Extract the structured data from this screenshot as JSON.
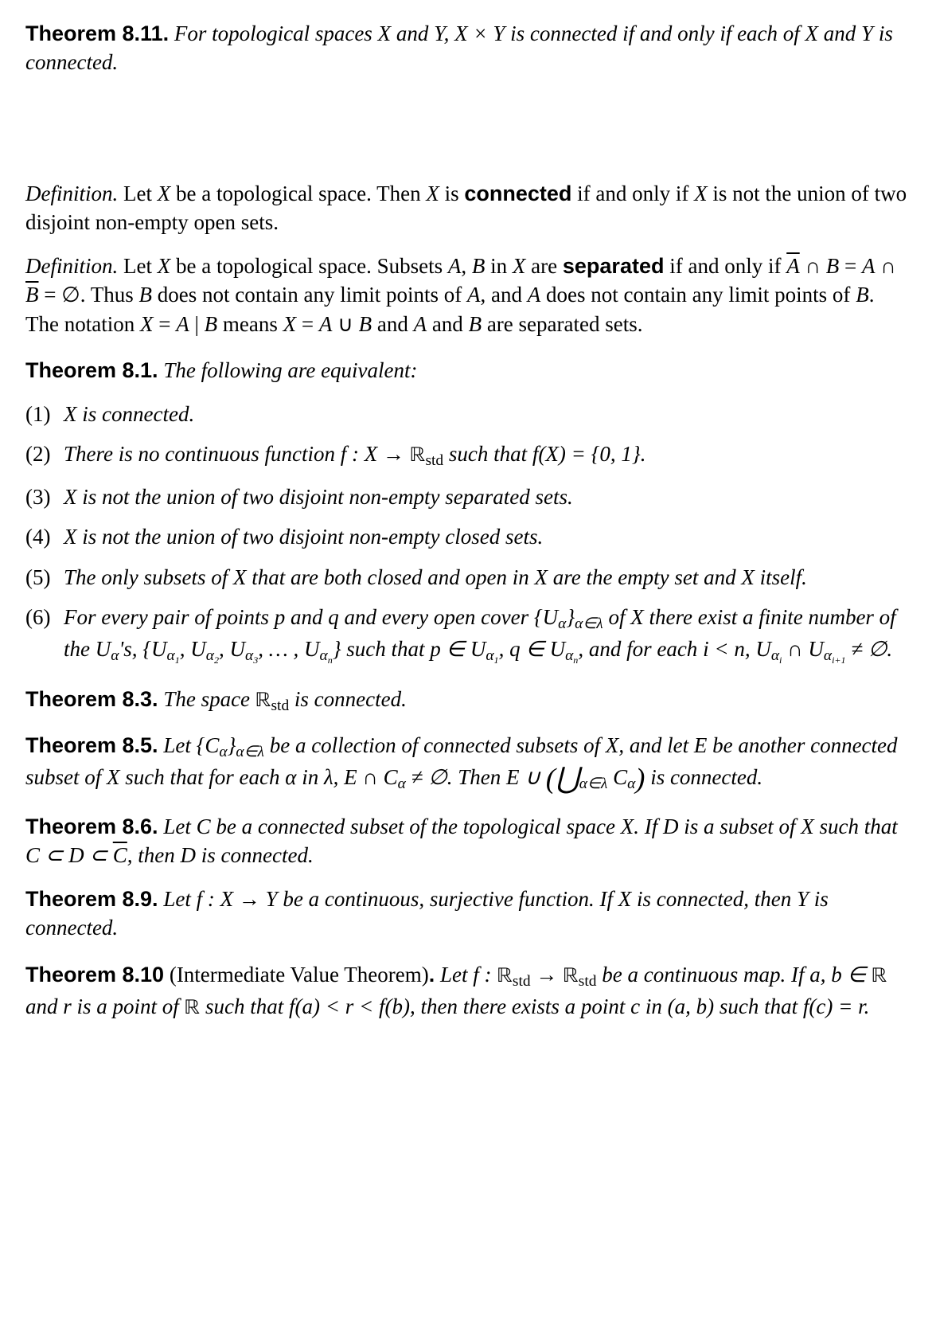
{
  "colors": {
    "text": "#000000",
    "background": "#ffffff"
  },
  "typography": {
    "body_family": "Georgia serif",
    "sans_family": "Helvetica/Arial sans",
    "body_size_pt": 20,
    "line_height": 1.35
  },
  "thm811": {
    "label": "Theorem 8.11.",
    "body_html": "For topological spaces <span class='mathvar'>X</span> and <span class='mathvar'>Y</span>, <span class='mathvar'>X</span> × <span class='mathvar'>Y</span> is connected if and only if each of <span class='mathvar'>X</span> and <span class='mathvar'>Y</span> is connected."
  },
  "def1": {
    "label": "Definition.",
    "body_html": "Let <span class='mathvar'>X</span> be a topological space. Then <span class='mathvar'>X</span> is <span class='thm-label'>connected</span> if and only if <span class='mathvar'>X</span> is not the union of two disjoint non-empty open sets."
  },
  "def2": {
    "label": "Definition.",
    "body_html": "Let <span class='mathvar'>X</span> be a topological space. Subsets <span class='mathvar'>A</span>, <span class='mathvar'>B</span> in <span class='mathvar'>X</span> are <span class='thm-label'>separated</span> if and only if <span class='ov mathvar'>A</span> ∩ <span class='mathvar'>B</span> = <span class='mathvar'>A</span> ∩ <span class='ov mathvar'>B</span> = ∅. Thus <span class='mathvar'>B</span> does not contain any limit points of <span class='mathvar'>A</span>, and <span class='mathvar'>A</span> does not contain any limit points of <span class='mathvar'>B</span>. The notation <span class='mathvar'>X</span> = <span class='mathvar'>A</span> | <span class='mathvar'>B</span> means <span class='mathvar'>X</span> = <span class='mathvar'>A</span> ∪ <span class='mathvar'>B</span> and <span class='mathvar'>A</span> and <span class='mathvar'>B</span> are separated sets."
  },
  "thm81": {
    "label": "Theorem 8.1.",
    "lead": "The following are equivalent:",
    "items": [
      {
        "num": "(1)",
        "html": "<span class='mathvar'>X</span> is connected."
      },
      {
        "num": "(2)",
        "html": "There is no continuous function <span class='mathvar'>f</span> : <span class='mathvar'>X</span> → <span class='bb'>ℝ</span><span class='sub'>std</span> such that <span class='mathvar'>f</span>(<span class='mathvar'>X</span>) = {0, 1}."
      },
      {
        "num": "(3)",
        "html": "<span class='mathvar'>X</span> is not the union of two disjoint non-empty separated sets."
      },
      {
        "num": "(4)",
        "html": "<span class='mathvar'>X</span> is not the union of two disjoint non-empty closed sets."
      },
      {
        "num": "(5)",
        "html": "The only subsets of <span class='mathvar'>X</span> that are both closed and open in <span class='mathvar'>X</span> are the empty set and <span class='mathvar'>X</span> itself."
      },
      {
        "num": "(6)",
        "html": "For every pair of points <span class='mathvar'>p</span> and <span class='mathvar'>q</span> and every open cover {<span class='mathvar'>U</span><span class='subi'>α</span>}<span class='subi'>α∈λ</span> of <span class='mathvar'>X</span> there exist a finite number of the <span class='mathvar'>U</span><span class='subi'>α</span>'s, {<span class='mathvar'>U</span><span class='subi'>α<span class='ssub'>1</span></span>, <span class='mathvar'>U</span><span class='subi'>α<span class='ssub'>2</span></span>, <span class='mathvar'>U</span><span class='subi'>α<span class='ssub'>3</span></span>, … , <span class='mathvar'>U</span><span class='subi'>α<span class='ssub'>n</span></span>} such that <span class='mathvar'>p</span> ∈ <span class='mathvar'>U</span><span class='subi'>α<span class='ssub'>1</span></span>, <span class='mathvar'>q</span> ∈ <span class='mathvar'>U</span><span class='subi'>α<span class='ssub'>n</span></span>, and for each <span class='mathvar'>i</span> &lt; <span class='mathvar'>n</span>, <span class='mathvar'>U</span><span class='subi'>α<span class='ssub'>i</span></span> ∩ <span class='mathvar'>U</span><span class='subi'>α<span class='ssub'>i+1</span></span> ≠ ∅."
      }
    ]
  },
  "thm83": {
    "label": "Theorem 8.3.",
    "body_html": "The space <span class='bb'>ℝ</span><span class='sub upright'>std</span> is connected."
  },
  "thm85": {
    "label": "Theorem 8.5.",
    "body_html": "Let {<span class='mathvar'>C</span><span class='subi'>α</span>}<span class='subi'>α∈λ</span> be a collection of connected subsets of <span class='mathvar'>X</span>, and let <span class='mathvar'>E</span> be another connected subset of <span class='mathvar'>X</span> such that for each <span class='mathvar'>α</span> in <span class='mathvar'>λ</span>, <span class='mathvar'>E</span> ∩ <span class='mathvar'>C</span><span class='subi'>α</span> ≠ ∅. Then <span class='mathvar'>E</span> ∪ <span class='bigparen'>(</span><span class='bigop'>⋃</span><span class='subi'>α∈λ</span> <span class='mathvar'>C</span><span class='subi'>α</span><span class='bigparen'>)</span> is connected."
  },
  "thm86": {
    "label": "Theorem 8.6.",
    "body_html": "Let <span class='mathvar'>C</span> be a connected subset of the topological space <span class='mathvar'>X</span>. If <span class='mathvar'>D</span> is a subset of <span class='mathvar'>X</span> such that <span class='mathvar'>C</span> ⊂ <span class='mathvar'>D</span> ⊂ <span class='ov mathvar'>C</span>, then <span class='mathvar'>D</span> is connected."
  },
  "thm89": {
    "label": "Theorem 8.9.",
    "body_html": "Let <span class='mathvar'>f</span> : <span class='mathvar'>X</span> → <span class='mathvar'>Y</span> be a continuous, surjective function. If <span class='mathvar'>X</span> is connected, then <span class='mathvar'>Y</span> is connected."
  },
  "thm810": {
    "label": "Theorem 8.10",
    "paren": " (Intermediate Value Theorem)",
    "dot": ".",
    "body_html": "Let <span class='mathvar'>f</span> : <span class='bb'>ℝ</span><span class='sub upright'>std</span> → <span class='bb'>ℝ</span><span class='sub upright'>std</span> be a continuous map. If <span class='mathvar'>a</span>, <span class='mathvar'>b</span> ∈ <span class='bb'>ℝ</span> and <span class='mathvar'>r</span> is a point of <span class='bb'>ℝ</span> such that <span class='mathvar'>f</span>(<span class='mathvar'>a</span>) &lt; <span class='mathvar'>r</span> &lt; <span class='mathvar'>f</span>(<span class='mathvar'>b</span>), then there exists a point <span class='mathvar'>c</span> in (<span class='mathvar'>a</span>, <span class='mathvar'>b</span>) such that <span class='mathvar'>f</span>(<span class='mathvar'>c</span>) = <span class='mathvar'>r</span>."
  }
}
